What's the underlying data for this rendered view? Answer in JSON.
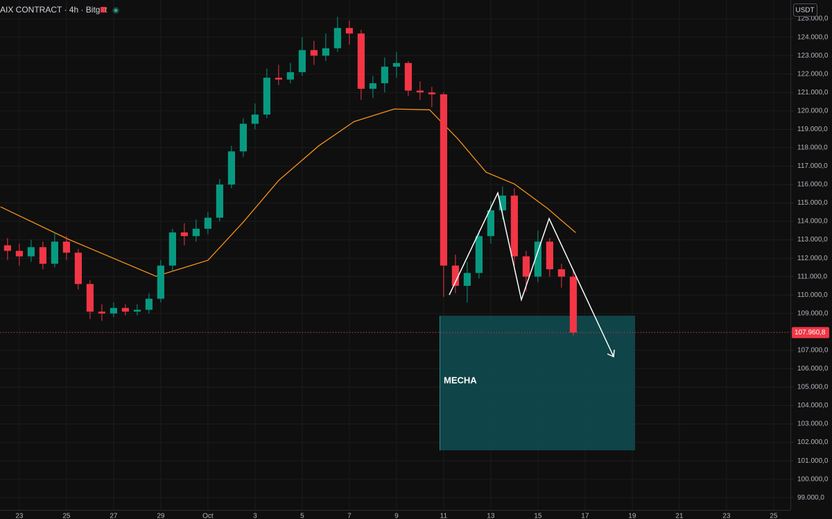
{
  "chart_data": {
    "type": "candlestick",
    "title": "AIX CONTRACT · 4h · Bitget",
    "unit": "USDT",
    "annotation": "MECHA",
    "up_color": "#089981",
    "down_color": "#f23645",
    "grid": true,
    "x": [
      22.5,
      23,
      23.5,
      24,
      24.5,
      25,
      25.5,
      26,
      26.5,
      27,
      27.5,
      28,
      28.5,
      29,
      29.5,
      30,
      30.5,
      31,
      31.5,
      32,
      32.5,
      33,
      33.5,
      34,
      34.5,
      35,
      35.5,
      36,
      36.5,
      37,
      37.5,
      38,
      38.5,
      39,
      39.5,
      40,
      40.5,
      41,
      41.5,
      42,
      42.5,
      43,
      43.5,
      44,
      44.5,
      45,
      45.5,
      46,
      46.5
    ],
    "open": [
      112700,
      112400,
      112100,
      112600,
      111700,
      112900,
      112300,
      110600,
      109100,
      109000,
      109300,
      109100,
      109200,
      109800,
      111600,
      113400,
      113200,
      113600,
      114200,
      116000,
      117800,
      119300,
      119800,
      121800,
      121700,
      122100,
      123300,
      123000,
      123400,
      124500,
      124200,
      121200,
      121500,
      122400,
      122600,
      121100,
      121000,
      120900,
      111600,
      110500,
      111200,
      113200,
      114600,
      115400,
      112100,
      111000,
      112900,
      111400,
      111000
    ],
    "high": [
      113100,
      112800,
      113000,
      112900,
      113400,
      113200,
      112500,
      110800,
      109500,
      109600,
      109500,
      109500,
      110100,
      111900,
      113600,
      113900,
      114100,
      114500,
      116300,
      118100,
      119600,
      120400,
      122300,
      122500,
      122600,
      124000,
      123800,
      124200,
      125100,
      124900,
      124400,
      121900,
      122900,
      123200,
      122700,
      121600,
      121300,
      121000,
      112200,
      111800,
      113500,
      115100,
      115900,
      115800,
      112400,
      113500,
      113100,
      111700,
      111400
    ],
    "low": [
      111900,
      111600,
      111800,
      111400,
      111500,
      111900,
      110300,
      108700,
      108600,
      108800,
      108900,
      108900,
      109000,
      109600,
      111300,
      112700,
      112900,
      113300,
      114000,
      115800,
      117500,
      119000,
      119600,
      121400,
      121500,
      121900,
      122500,
      122700,
      123200,
      123600,
      120600,
      120700,
      121000,
      121800,
      120800,
      120600,
      120200,
      109900,
      110100,
      109600,
      110900,
      112800,
      114100,
      111600,
      110200,
      110700,
      111000,
      110400,
      107800
    ],
    "close": [
      112400,
      112100,
      112600,
      111700,
      112900,
      112300,
      110600,
      109100,
      109000,
      109300,
      109100,
      109200,
      109800,
      111600,
      113400,
      113200,
      113600,
      114200,
      116000,
      117800,
      119300,
      119800,
      121800,
      121700,
      122100,
      123300,
      123000,
      123400,
      124500,
      124200,
      121200,
      121500,
      122400,
      122600,
      121100,
      121000,
      120900,
      111600,
      110500,
      111200,
      113200,
      114600,
      115400,
      112100,
      111000,
      112900,
      111400,
      111000,
      107960.8
    ],
    "last_label": "107.960,8",
    "overlays": [
      {
        "type": "line",
        "color": "#f7931a",
        "x": [
          22.2,
          25.1,
          28.8,
          31,
          32.5,
          34,
          35.7,
          37.2,
          38.9,
          40.4,
          41.6,
          42.8,
          44,
          45.4,
          46.6
        ],
        "values": [
          114790,
          113020,
          111020,
          111890,
          113960,
          116220,
          118100,
          119420,
          120100,
          120060,
          118480,
          116670,
          116030,
          114710,
          113390
        ]
      }
    ],
    "xlim": [
      22.18,
      55.71
    ],
    "xticks": [
      23,
      25,
      27,
      29,
      {
        "value": 31,
        "label": "Oct"
      },
      {
        "value": 33,
        "label": "3"
      },
      {
        "value": 35,
        "label": "5"
      },
      {
        "value": 37,
        "label": "7"
      },
      {
        "value": 39,
        "label": "9"
      },
      {
        "value": 41,
        "label": "11"
      },
      {
        "value": 43,
        "label": "13"
      },
      {
        "value": 45,
        "label": "15"
      },
      {
        "value": 47,
        "label": "17"
      },
      {
        "value": 49,
        "label": "19"
      },
      {
        "value": 51,
        "label": "21"
      },
      {
        "value": 53,
        "label": "23"
      },
      {
        "value": 55,
        "label": "25"
      }
    ],
    "ylim": [
      98330,
      126020
    ],
    "yticks": [
      {
        "value": 99000,
        "label": "99.000,0"
      },
      {
        "value": 100000,
        "label": "100.000,0"
      },
      {
        "value": 101000,
        "label": "101.000,0"
      },
      {
        "value": 102000,
        "label": "102.000,0"
      },
      {
        "value": 103000,
        "label": "103.000,0"
      },
      {
        "value": 104000,
        "label": "104.000,0"
      },
      {
        "value": 105000,
        "label": "105.000,0"
      },
      {
        "value": 106000,
        "label": "106.000,0"
      },
      {
        "value": 107000,
        "label": "107.000,0"
      },
      {
        "value": 108000,
        "label": "108.000,0"
      },
      {
        "value": 109000,
        "label": "109.000,0"
      },
      {
        "value": 110000,
        "label": "110.000,0"
      },
      {
        "value": 111000,
        "label": "111.000,0"
      },
      {
        "value": 112000,
        "label": "112.000,0"
      },
      {
        "value": 113000,
        "label": "113.000,0"
      },
      {
        "value": 114000,
        "label": "114.000,0"
      },
      {
        "value": 115000,
        "label": "115.000,0"
      },
      {
        "value": 116000,
        "label": "116.000,0"
      },
      {
        "value": 117000,
        "label": "117.000,0"
      },
      {
        "value": 118000,
        "label": "118.000,0"
      },
      {
        "value": 119000,
        "label": "119.000,0"
      },
      {
        "value": 120000,
        "label": "120.000,0"
      },
      {
        "value": 121000,
        "label": "121.000,0"
      },
      {
        "value": 122000,
        "label": "122.000,0"
      },
      {
        "value": 123000,
        "label": "123.000,0"
      },
      {
        "value": 124000,
        "label": "124.000,0"
      },
      {
        "value": 125000,
        "label": "125.000,0"
      }
    ]
  }
}
